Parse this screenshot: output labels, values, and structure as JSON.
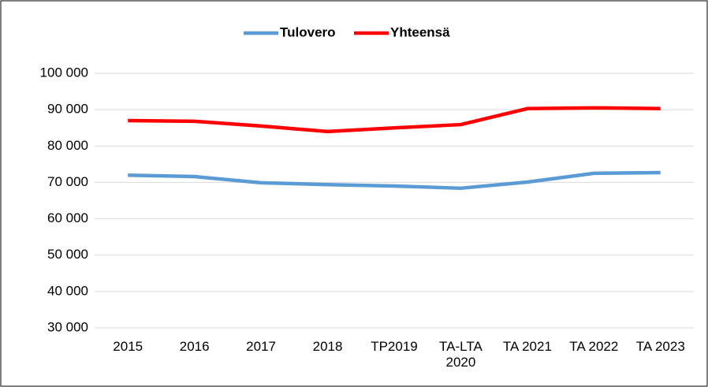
{
  "chart_data": {
    "type": "line",
    "categories": [
      "2015",
      "2016",
      "2017",
      "2018",
      "TP2019",
      "TA-LTA 2020",
      "TA 2021",
      "TA 2022",
      "TA 2023"
    ],
    "series": [
      {
        "name": "Tulovero",
        "color": "#5b9bd5",
        "values": [
          72000,
          71600,
          69900,
          69400,
          69000,
          68400,
          70100,
          72500,
          72700
        ]
      },
      {
        "name": "Yhteensä",
        "color": "#ff0000",
        "values": [
          87000,
          86800,
          85500,
          84000,
          85000,
          85900,
          90300,
          90500,
          90300
        ]
      }
    ],
    "ylim": [
      30000,
      100000
    ],
    "yticks": [
      {
        "value": 30000,
        "label": "30 000"
      },
      {
        "value": 40000,
        "label": "40 000"
      },
      {
        "value": 50000,
        "label": "50 000"
      },
      {
        "value": 60000,
        "label": "60 000"
      },
      {
        "value": 70000,
        "label": "70 000"
      },
      {
        "value": 80000,
        "label": "80 000"
      },
      {
        "value": 90000,
        "label": "90 000"
      },
      {
        "value": 100000,
        "label": "100 000"
      }
    ],
    "grid": true,
    "legend": "top"
  }
}
